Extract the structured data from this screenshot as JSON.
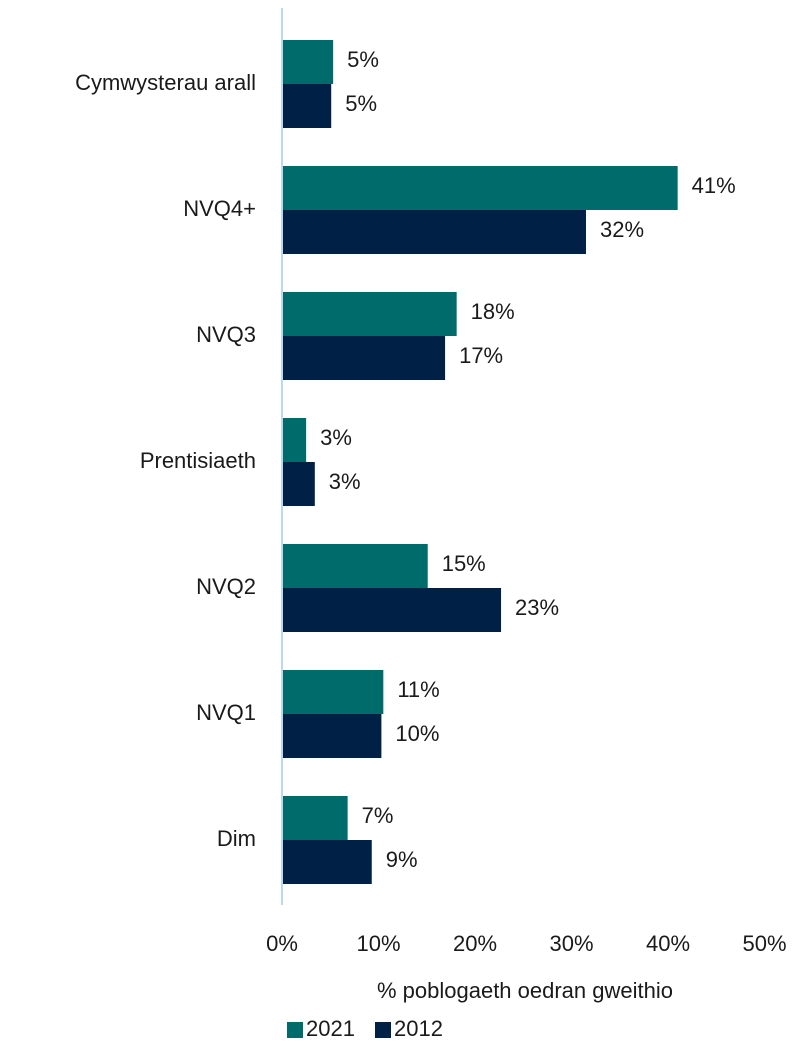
{
  "chart_data": {
    "type": "barh",
    "xlabel": "% poblogaeth oedran gweithio",
    "categories": [
      "Cymwysterau arall",
      "NVQ4+",
      "NVQ3",
      "Prentisiaeth",
      "NVQ2",
      "NVQ1",
      "Dim"
    ],
    "series": [
      {
        "name": "2021",
        "color": "#006b6b",
        "values": [
          5.3,
          41.0,
          18.1,
          2.5,
          15.1,
          10.5,
          6.8
        ],
        "value_labels": [
          "5%",
          "41%",
          "18%",
          "3%",
          "15%",
          "11%",
          "7%"
        ]
      },
      {
        "name": "2012",
        "color": "#002145",
        "values": [
          5.1,
          31.5,
          16.9,
          3.4,
          22.7,
          10.3,
          9.3
        ],
        "value_labels": [
          "5%",
          "32%",
          "17%",
          "3%",
          "23%",
          "10%",
          "9%"
        ]
      }
    ],
    "xlim": [
      0,
      50
    ],
    "xticks": [
      {
        "value": 0,
        "label": "0%"
      },
      {
        "value": 10,
        "label": "10%"
      },
      {
        "value": 20,
        "label": "20%"
      },
      {
        "value": 30,
        "label": "30%"
      },
      {
        "value": 40,
        "label": "40%"
      },
      {
        "value": 50,
        "label": "50%"
      }
    ],
    "legend": "bottom"
  }
}
